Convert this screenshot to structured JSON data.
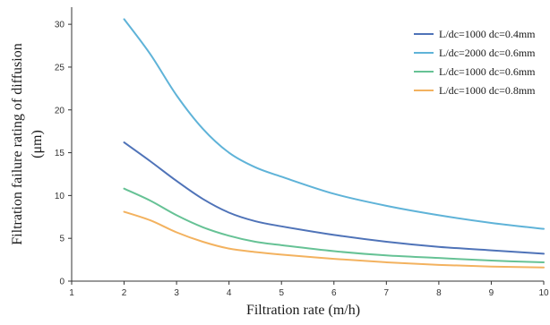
{
  "chart_data": {
    "type": "line",
    "title": "",
    "xlabel": "Filtration rate (m/h)",
    "ylabel_line1": "Filtration failure rating  of diffusion",
    "ylabel_line2": "(μm)",
    "xlim": [
      1,
      10
    ],
    "ylim": [
      0,
      32
    ],
    "xticks": [
      1,
      2,
      3,
      4,
      5,
      6,
      7,
      8,
      9,
      10
    ],
    "yticks": [
      0,
      5,
      10,
      15,
      20,
      25,
      30
    ],
    "grid": false,
    "legend_position": "top-right",
    "x": [
      2,
      2.5,
      3,
      3.5,
      4,
      4.5,
      5,
      6,
      7,
      8,
      9,
      10
    ],
    "series": [
      {
        "name": "L/dc=1000 dc=0.4mm",
        "color": "#4f73b8",
        "values": [
          16.2,
          14.0,
          11.7,
          9.6,
          8.0,
          7.0,
          6.4,
          5.4,
          4.6,
          4.0,
          3.6,
          3.2
        ]
      },
      {
        "name": "L/dc=2000 dc=0.6mm",
        "color": "#5fb3d8",
        "values": [
          30.6,
          26.5,
          21.7,
          17.8,
          15.0,
          13.3,
          12.2,
          10.2,
          8.8,
          7.7,
          6.8,
          6.1
        ]
      },
      {
        "name": "L/dc=1000 dc=0.6mm",
        "color": "#66c295",
        "values": [
          10.8,
          9.4,
          7.7,
          6.3,
          5.3,
          4.6,
          4.2,
          3.5,
          3.0,
          2.7,
          2.4,
          2.2
        ]
      },
      {
        "name": "L/dc=1000 dc=0.8mm",
        "color": "#f3b25f",
        "values": [
          8.1,
          7.1,
          5.7,
          4.6,
          3.8,
          3.4,
          3.1,
          2.6,
          2.2,
          1.9,
          1.7,
          1.6
        ]
      }
    ]
  }
}
